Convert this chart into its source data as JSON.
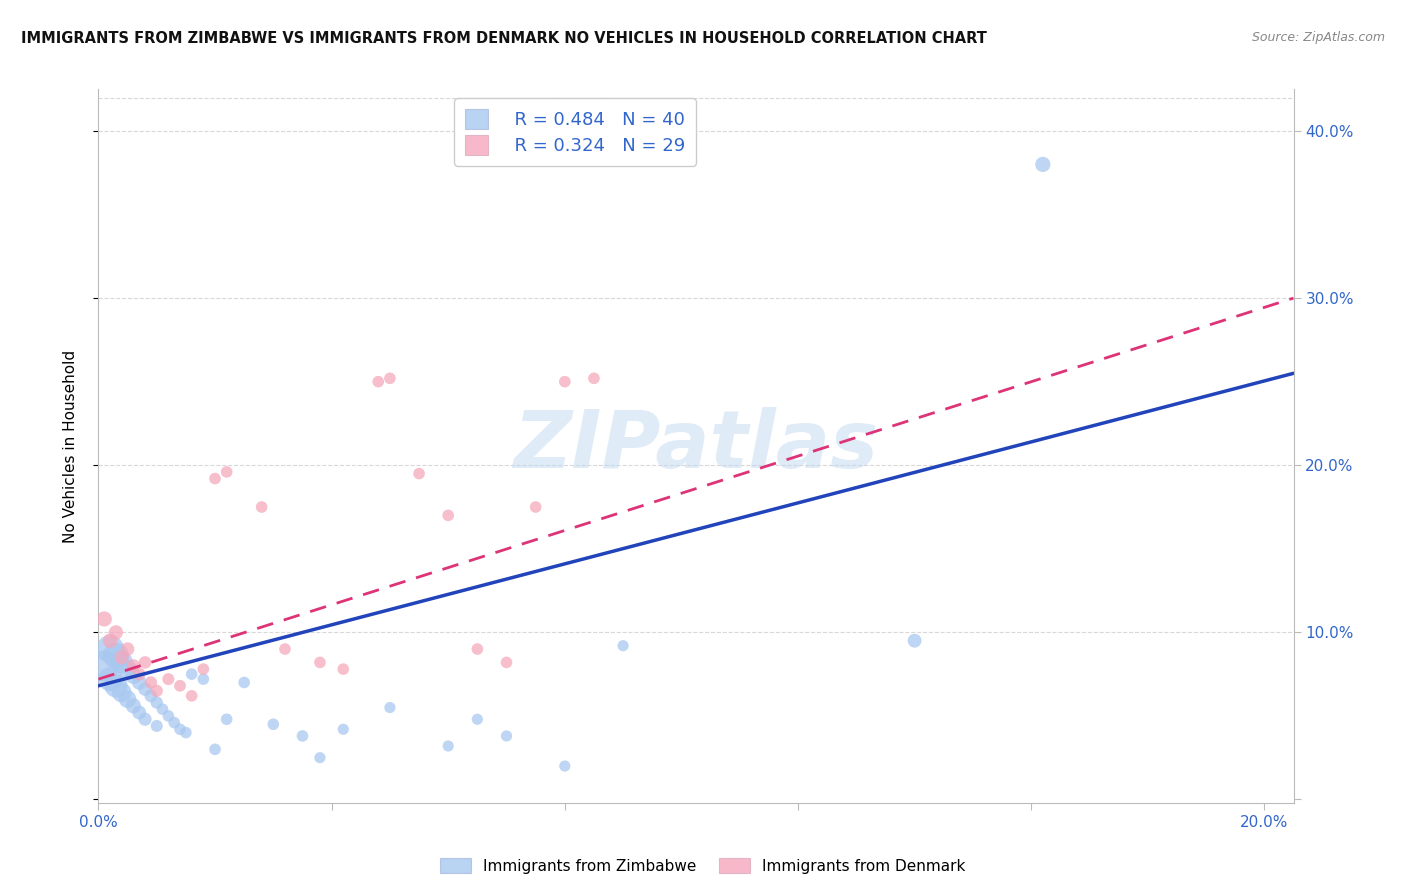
{
  "title": "IMMIGRANTS FROM ZIMBABWE VS IMMIGRANTS FROM DENMARK NO VEHICLES IN HOUSEHOLD CORRELATION CHART",
  "source": "Source: ZipAtlas.com",
  "ylabel": "No Vehicles in Household",
  "xlim": [
    0.0,
    0.205
  ],
  "ylim": [
    -0.002,
    0.425
  ],
  "legend_r_zimbabwe": "R = 0.484",
  "legend_n_zimbabwe": "N = 40",
  "legend_r_denmark": "R = 0.324",
  "legend_n_denmark": "N = 29",
  "color_zimbabwe": "#a8c8f0",
  "color_denmark": "#f5a8bc",
  "line_color_zimbabwe": "#2244bb",
  "line_color_denmark": "#dd3377",
  "watermark": "ZIPatlas",
  "background_color": "#ffffff",
  "grid_color": "#d8d8d8",
  "zimbabwe_x": [
    0.001,
    0.002,
    0.002,
    0.003,
    0.003,
    0.004,
    0.004,
    0.005,
    0.005,
    0.006,
    0.006,
    0.007,
    0.007,
    0.008,
    0.008,
    0.009,
    0.01,
    0.01,
    0.011,
    0.012,
    0.013,
    0.014,
    0.015,
    0.016,
    0.018,
    0.02,
    0.022,
    0.025,
    0.03,
    0.035,
    0.038,
    0.042,
    0.05,
    0.06,
    0.065,
    0.07,
    0.08,
    0.09,
    0.14,
    0.162
  ],
  "zimbabwe_y": [
    0.08,
    0.09,
    0.072,
    0.086,
    0.068,
    0.082,
    0.064,
    0.078,
    0.06,
    0.074,
    0.056,
    0.07,
    0.052,
    0.066,
    0.048,
    0.062,
    0.058,
    0.044,
    0.054,
    0.05,
    0.046,
    0.042,
    0.04,
    0.075,
    0.072,
    0.03,
    0.048,
    0.07,
    0.045,
    0.038,
    0.025,
    0.042,
    0.055,
    0.032,
    0.048,
    0.038,
    0.02,
    0.092,
    0.095,
    0.38
  ],
  "zimbabwe_sizes": [
    500,
    400,
    300,
    350,
    280,
    260,
    200,
    180,
    160,
    140,
    120,
    110,
    100,
    95,
    90,
    85,
    80,
    75,
    70,
    70,
    70,
    70,
    70,
    70,
    70,
    70,
    70,
    70,
    70,
    70,
    65,
    65,
    65,
    65,
    65,
    65,
    65,
    65,
    100,
    120
  ],
  "denmark_x": [
    0.001,
    0.002,
    0.003,
    0.004,
    0.005,
    0.006,
    0.007,
    0.008,
    0.009,
    0.01,
    0.012,
    0.014,
    0.016,
    0.018,
    0.02,
    0.022,
    0.028,
    0.032,
    0.038,
    0.042,
    0.048,
    0.05,
    0.055,
    0.06,
    0.065,
    0.07,
    0.075,
    0.08,
    0.085
  ],
  "denmark_y": [
    0.108,
    0.095,
    0.1,
    0.085,
    0.09,
    0.08,
    0.075,
    0.082,
    0.07,
    0.065,
    0.072,
    0.068,
    0.062,
    0.078,
    0.192,
    0.196,
    0.175,
    0.09,
    0.082,
    0.078,
    0.25,
    0.252,
    0.195,
    0.17,
    0.09,
    0.082,
    0.175,
    0.25,
    0.252
  ],
  "denmark_sizes": [
    120,
    110,
    105,
    100,
    95,
    90,
    85,
    82,
    80,
    78,
    75,
    72,
    70,
    70,
    70,
    70,
    70,
    70,
    70,
    70,
    70,
    70,
    70,
    70,
    70,
    70,
    70,
    70,
    70
  ],
  "zim_line_x0": 0.0,
  "zim_line_y0": 0.068,
  "zim_line_x1": 0.205,
  "zim_line_y1": 0.255,
  "den_line_x0": 0.0,
  "den_line_y0": 0.072,
  "den_line_x1": 0.205,
  "den_line_y1": 0.3
}
